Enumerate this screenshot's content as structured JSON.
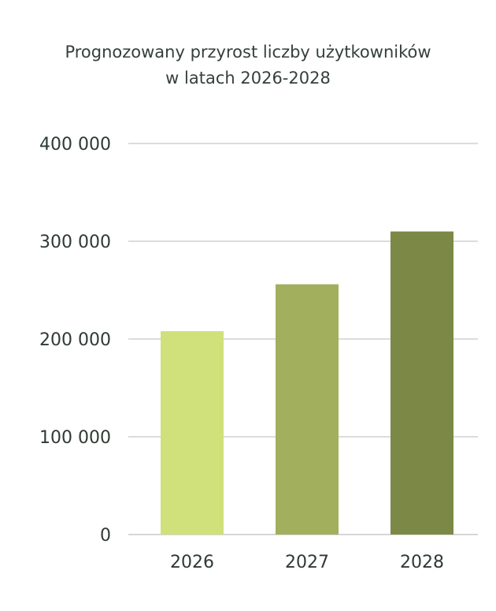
{
  "chart_data": {
    "type": "bar",
    "title_lines": [
      "Prognozowany przyrost liczby użytkowników",
      "w latach 2026-2028"
    ],
    "categories": [
      "2026",
      "2027",
      "2028"
    ],
    "values": [
      208000,
      256000,
      310000
    ],
    "bar_colors": [
      "#d0e07a",
      "#a2af5c",
      "#7c8946"
    ],
    "ylim": [
      0,
      400000
    ],
    "yticks": [
      0,
      100000,
      200000,
      300000,
      400000
    ],
    "ytick_labels": [
      "0",
      "100 000",
      "200 000",
      "300 000",
      "400 000"
    ],
    "grid": true,
    "grid_color": "#c8c8c8",
    "legend": "none"
  }
}
